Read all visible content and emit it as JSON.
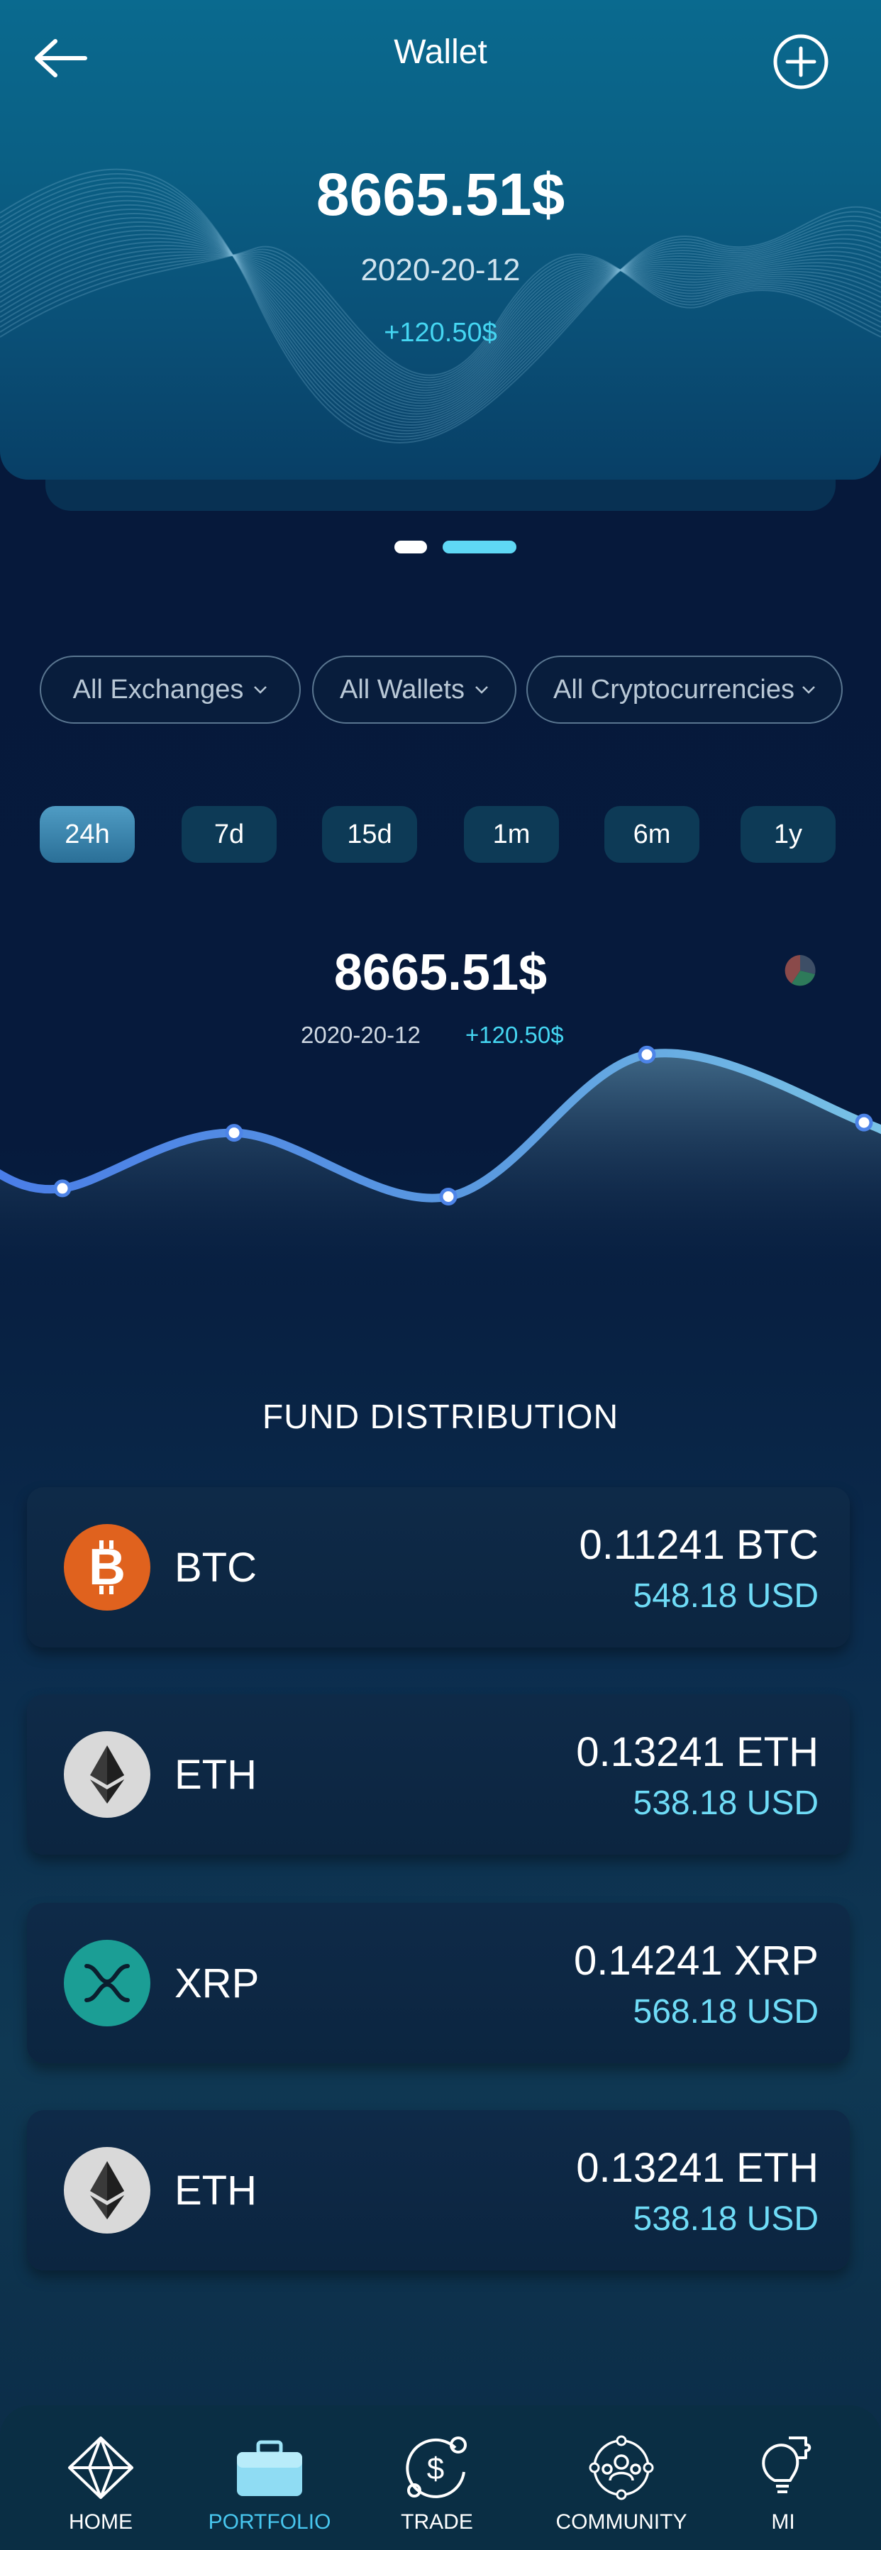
{
  "header": {
    "title": "Wallet",
    "balance": "8665.51$",
    "date": "2020-20-12",
    "change": "+120.50$"
  },
  "filters": [
    {
      "label": "All Exchanges"
    },
    {
      "label": "All Wallets"
    },
    {
      "label": "All Cryptocurrencies"
    }
  ],
  "time_ranges": [
    {
      "label": "24h",
      "active": true
    },
    {
      "label": "7d"
    },
    {
      "label": "15d"
    },
    {
      "label": "1m"
    },
    {
      "label": "6m"
    },
    {
      "label": "1y"
    }
  ],
  "chart_summary": {
    "balance": "8665.51$",
    "date": "2020-20-12",
    "change": "+120.50$"
  },
  "chart_data": {
    "type": "line",
    "values": [
      38,
      92,
      30,
      168,
      102
    ],
    "grid": false,
    "legend": "none"
  },
  "fund_distribution": {
    "title": "FUND DISTRIBUTION",
    "items": [
      {
        "symbol": "BTC",
        "amount": "0.11241 BTC",
        "usd": "548.18 USD",
        "icon": "bitcoin-icon",
        "color": "#e0621e"
      },
      {
        "symbol": "ETH",
        "amount": "0.13241 ETH",
        "usd": "538.18 USD",
        "icon": "ethereum-icon",
        "color": "#d9d9d9"
      },
      {
        "symbol": "XRP",
        "amount": "0.14241 XRP",
        "usd": "568.18 USD",
        "icon": "xrp-icon",
        "color": "#1b9e95"
      },
      {
        "symbol": "ETH",
        "amount": "0.13241 ETH",
        "usd": "538.18 USD",
        "icon": "ethereum-icon",
        "color": "#d9d9d9"
      }
    ]
  },
  "nav": [
    {
      "label": "HOME",
      "icon": "home-diamond-icon"
    },
    {
      "label": "PORTFOLIO",
      "icon": "briefcase-icon",
      "active": true
    },
    {
      "label": "TRADE",
      "icon": "trade-dollar-icon"
    },
    {
      "label": "COMMUNITY",
      "icon": "community-icon"
    },
    {
      "label": "MI",
      "icon": "lightbulb-puzzle-icon"
    }
  ],
  "colors": {
    "accent": "#45d6f2",
    "line": "#4d84e8",
    "background": "#071a3a"
  }
}
